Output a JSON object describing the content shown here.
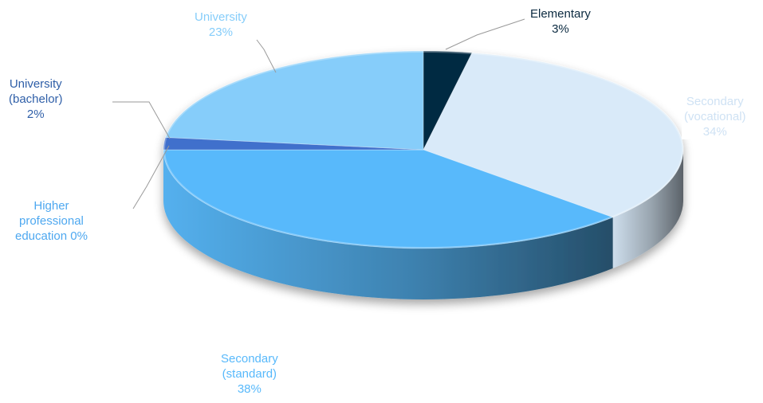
{
  "chart_data": {
    "type": "pie",
    "title": "",
    "slices": [
      {
        "name": "Elementary",
        "value": 3,
        "label_lines": [
          "Elementary",
          "3%"
        ],
        "color": "#032a43",
        "label_color": "#0b2a40"
      },
      {
        "name": "Secondary (vocational)",
        "value": 34,
        "label_lines": [
          "Secondary",
          "(vocational)",
          "34%"
        ],
        "color": "#d9eaf9",
        "label_color": "#cfe2f4"
      },
      {
        "name": "Secondary (standard)",
        "value": 38,
        "label_lines": [
          "Secondary",
          "(standard)",
          "38%"
        ],
        "color": "#58b9fb",
        "label_color": "#58b9fb"
      },
      {
        "name": "Higher professional education",
        "value": 0,
        "label_lines": [
          "Higher",
          "professional",
          "education 0%"
        ],
        "color": "#6aaee8",
        "label_color": "#4ea8f0"
      },
      {
        "name": "University (bachelor)",
        "value": 2,
        "label_lines": [
          "University",
          "(bachelor)",
          "2%"
        ],
        "color": "#3f6fcc",
        "label_color": "#2f5fa8"
      },
      {
        "name": "University",
        "value": 23,
        "label_lines": [
          "University",
          "23%"
        ],
        "color": "#86cdfa",
        "label_color": "#86cdfa"
      }
    ]
  }
}
